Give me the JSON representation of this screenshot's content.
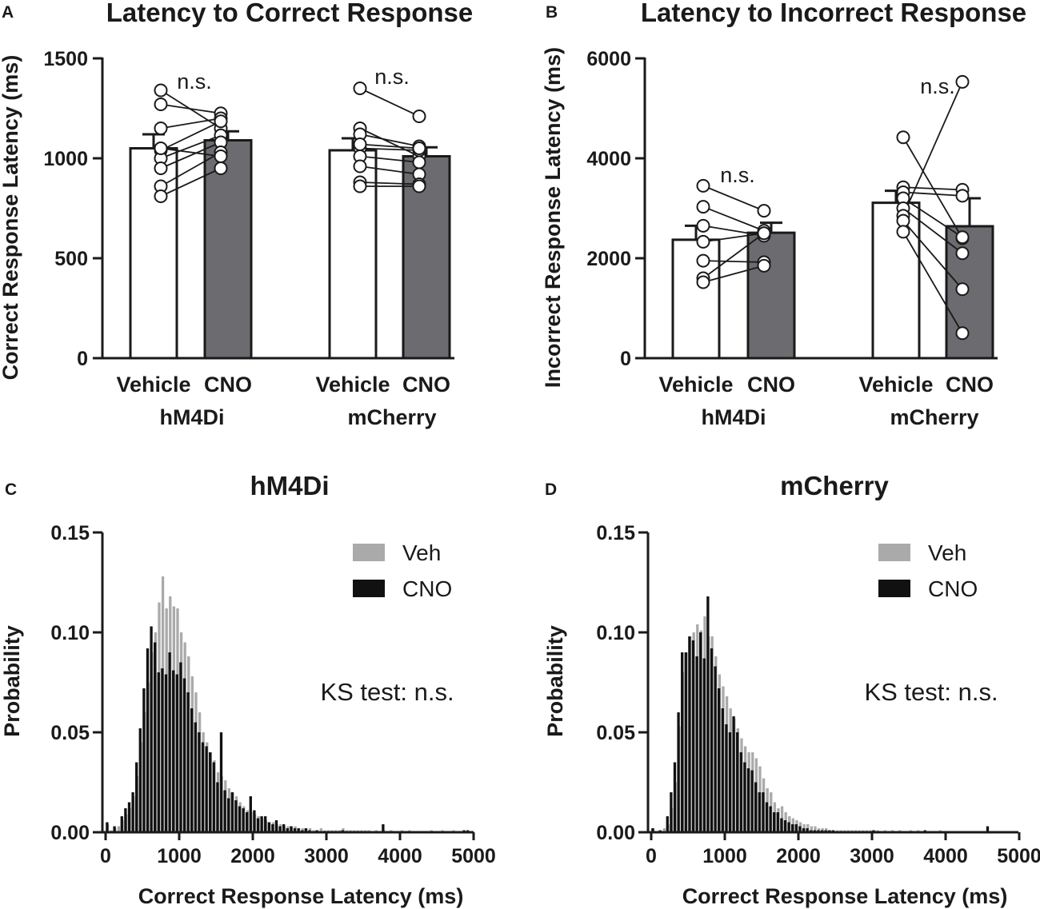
{
  "colors": {
    "ink": "#1a1a1a",
    "vehicle_bar": "#ffffff",
    "cno_bar": "#6b6b70",
    "veh_hist": "#aaaaaa",
    "cno_hist": "#111111",
    "dot": "#ffffff"
  },
  "chart_data": [
    {
      "panel": "A",
      "type": "bar",
      "title": "Latency to Correct Response",
      "xlabel": "",
      "ylabel": "Correct Response Latency (ms)",
      "ylim": [
        0,
        1500
      ],
      "yticks": [
        0,
        500,
        1000,
        1500
      ],
      "condition_labels": [
        "Vehicle",
        "CNO"
      ],
      "groups": [
        {
          "name": "hM4Di",
          "means": [
            1050,
            1090
          ],
          "sems": [
            70,
            45
          ],
          "annotation": "n.s.",
          "pairs": [
            [
              1340,
              1150
            ],
            [
              1270,
              1225
            ],
            [
              1150,
              1200
            ],
            [
              1040,
              1185
            ],
            [
              1000,
              1115
            ],
            [
              950,
              1080
            ],
            [
              860,
              1030
            ],
            [
              810,
              950
            ],
            [
              1050,
              1010
            ]
          ]
        },
        {
          "name": "mCherry",
          "means": [
            1040,
            1010
          ],
          "sems": [
            60,
            45
          ],
          "annotation": "n.s.",
          "pairs": [
            [
              1350,
              1210
            ],
            [
              1150,
              1010
            ],
            [
              1120,
              1060
            ],
            [
              1050,
              1040
            ],
            [
              1010,
              980
            ],
            [
              960,
              920
            ],
            [
              880,
              870
            ],
            [
              860,
              860
            ],
            [
              1070,
              1050
            ]
          ]
        }
      ]
    },
    {
      "panel": "B",
      "type": "bar",
      "title": "Latency to Incorrect Response",
      "xlabel": "",
      "ylabel": "Incorrect Response Latency (ms)",
      "ylim": [
        0,
        6000
      ],
      "yticks": [
        0,
        2000,
        4000,
        6000
      ],
      "condition_labels": [
        "Vehicle",
        "CNO"
      ],
      "groups": [
        {
          "name": "hM4Di",
          "means": [
            2370,
            2510
          ],
          "sems": [
            280,
            200
          ],
          "annotation": "n.s.",
          "pairs": [
            [
              3450,
              2950
            ],
            [
              3030,
              2550
            ],
            [
              2650,
              2450
            ],
            [
              2330,
              2500
            ],
            [
              1950,
              1920
            ],
            [
              1600,
              2500
            ],
            [
              1520,
              1850
            ]
          ]
        },
        {
          "name": "mCherry",
          "means": [
            3110,
            2640
          ],
          "sems": [
            240,
            560
          ],
          "annotation": "n.s.",
          "pairs": [
            [
              4420,
              2400
            ],
            [
              3420,
              3370
            ],
            [
              3320,
              3250
            ],
            [
              3200,
              2420
            ],
            [
              3000,
              2100
            ],
            [
              2850,
              5530
            ],
            [
              2750,
              1380
            ],
            [
              2530,
              500
            ]
          ]
        }
      ]
    },
    {
      "panel": "C",
      "type": "bar",
      "title": "hM4Di",
      "xlabel": "Correct Response Latency (ms)",
      "ylabel": "Probability",
      "xlim": [
        0,
        5000
      ],
      "ylim": [
        0,
        0.15
      ],
      "xticks": [
        0,
        1000,
        2000,
        3000,
        4000,
        5000
      ],
      "yticks": [
        "0.00",
        "0.05",
        "0.10",
        "0.15"
      ],
      "annotation": "KS test: n.s.",
      "legend": [
        "Veh",
        "CNO"
      ],
      "legend_position": "top-right",
      "bin_width": 50,
      "bin_starts": [
        0,
        50,
        100,
        150,
        200,
        250,
        300,
        350,
        400,
        450,
        500,
        550,
        600,
        650,
        700,
        750,
        800,
        850,
        900,
        950,
        1000,
        1050,
        1100,
        1150,
        1200,
        1250,
        1300,
        1350,
        1400,
        1450,
        1500,
        1550,
        1600,
        1650,
        1700,
        1750,
        1800,
        1850,
        1900,
        1950,
        2000,
        2050,
        2100,
        2150,
        2200,
        2250,
        2300,
        2350,
        2400,
        2450,
        2500,
        2550,
        2600,
        2650,
        2700,
        2750,
        2800,
        2850,
        2900,
        2950,
        3000,
        3050,
        3100,
        3150,
        3200,
        3250,
        3300,
        3350,
        3400,
        3450,
        3500,
        3550,
        3600,
        3650,
        3700,
        3750,
        3800,
        3850,
        3900,
        3950,
        4000,
        4050,
        4100,
        4150,
        4200,
        4250,
        4300,
        4350,
        4400,
        4450,
        4500,
        4550,
        4600,
        4650,
        4700,
        4750,
        4800,
        4850,
        4900,
        4950
      ],
      "series": [
        {
          "name": "Veh",
          "values": [
            0.004,
            0.001,
            0.002,
            0.003,
            0.006,
            0.009,
            0.012,
            0.018,
            0.028,
            0.045,
            0.06,
            0.075,
            0.09,
            0.1,
            0.115,
            0.128,
            0.112,
            0.118,
            0.113,
            0.112,
            0.1,
            0.095,
            0.088,
            0.078,
            0.07,
            0.06,
            0.05,
            0.045,
            0.04,
            0.036,
            0.03,
            0.028,
            0.026,
            0.022,
            0.02,
            0.018,
            0.015,
            0.013,
            0.011,
            0.01,
            0.009,
            0.008,
            0.007,
            0.006,
            0.005,
            0.005,
            0.004,
            0.004,
            0.003,
            0.003,
            0.003,
            0.003,
            0.002,
            0.002,
            0.002,
            0.002,
            0.001,
            0.001,
            0.002,
            0.001,
            0.001,
            0.001,
            0.001,
            0.001,
            0.002,
            0.001,
            0.001,
            0.001,
            0.001,
            0.001,
            0.001,
            0.001,
            0.0,
            0.001,
            0.0,
            0.001,
            0.0,
            0.001,
            0.0,
            0.0,
            0.001,
            0.0,
            0.001,
            0.0,
            0.0,
            0.0,
            0.0,
            0.0,
            0.001,
            0.0,
            0.0,
            0.001,
            0.0,
            0.0,
            0.001,
            0.0,
            0.0,
            0.0,
            0.0,
            0.0
          ]
        },
        {
          "name": "CNO",
          "values": [
            0.005,
            0.0,
            0.003,
            0.0,
            0.008,
            0.012,
            0.015,
            0.02,
            0.035,
            0.052,
            0.072,
            0.092,
            0.103,
            0.095,
            0.08,
            0.082,
            0.079,
            0.09,
            0.081,
            0.079,
            0.085,
            0.077,
            0.07,
            0.062,
            0.055,
            0.05,
            0.045,
            0.043,
            0.04,
            0.035,
            0.025,
            0.05,
            0.021,
            0.017,
            0.02,
            0.016,
            0.013,
            0.012,
            0.01,
            0.018,
            0.011,
            0.007,
            0.008,
            0.008,
            0.005,
            0.004,
            0.006,
            0.003,
            0.004,
            0.002,
            0.003,
            0.002,
            0.002,
            0.001,
            0.002,
            0.001,
            0.0,
            0.001,
            0.0,
            0.0,
            0.0,
            0.0,
            0.0,
            0.0,
            0.001,
            0.0,
            0.0,
            0.0,
            0.0,
            0.0,
            0.0,
            0.0,
            0.0,
            0.0,
            0.0,
            0.004,
            0.0,
            0.0,
            0.0,
            0.0,
            0.0,
            0.0,
            0.0,
            0.0,
            0.0,
            0.0,
            0.0,
            0.0,
            0.0,
            0.0,
            0.0,
            0.0,
            0.0,
            0.0,
            0.0,
            0.0,
            0.0,
            0.001,
            0.001,
            0.0
          ]
        }
      ]
    },
    {
      "panel": "D",
      "type": "bar",
      "title": "mCherry",
      "xlabel": "Correct Response Latency (ms)",
      "ylabel": "Probability",
      "xlim": [
        0,
        5000
      ],
      "ylim": [
        0,
        0.15
      ],
      "xticks": [
        0,
        1000,
        2000,
        3000,
        4000,
        5000
      ],
      "yticks": [
        "0.00",
        "0.05",
        "0.10",
        "0.15"
      ],
      "annotation": "KS test: n.s.",
      "legend": [
        "Veh",
        "CNO"
      ],
      "legend_position": "top-right",
      "bin_width": 50,
      "bin_starts": [
        0,
        50,
        100,
        150,
        200,
        250,
        300,
        350,
        400,
        450,
        500,
        550,
        600,
        650,
        700,
        750,
        800,
        850,
        900,
        950,
        1000,
        1050,
        1100,
        1150,
        1200,
        1250,
        1300,
        1350,
        1400,
        1450,
        1500,
        1550,
        1600,
        1650,
        1700,
        1750,
        1800,
        1850,
        1900,
        1950,
        2000,
        2050,
        2100,
        2150,
        2200,
        2250,
        2300,
        2350,
        2400,
        2450,
        2500,
        2550,
        2600,
        2650,
        2700,
        2750,
        2800,
        2850,
        2900,
        2950,
        3000,
        3050,
        3100,
        3150,
        3200,
        3250,
        3300,
        3350,
        3400,
        3450,
        3500,
        3550,
        3600,
        3650,
        3700,
        3750,
        3800,
        3850,
        3900,
        3950,
        4000,
        4050,
        4100,
        4150,
        4200,
        4250,
        4300,
        4350,
        4400,
        4450,
        4500,
        4550,
        4600,
        4650,
        4700,
        4750,
        4800,
        4850,
        4900,
        4950
      ],
      "series": [
        {
          "name": "Veh",
          "values": [
            0.002,
            0.0,
            0.001,
            0.002,
            0.004,
            0.012,
            0.025,
            0.053,
            0.08,
            0.09,
            0.098,
            0.1,
            0.104,
            0.101,
            0.108,
            0.098,
            0.098,
            0.088,
            0.079,
            0.073,
            0.068,
            0.062,
            0.057,
            0.052,
            0.047,
            0.043,
            0.04,
            0.04,
            0.037,
            0.033,
            0.027,
            0.022,
            0.02,
            0.015,
            0.012,
            0.013,
            0.01,
            0.008,
            0.007,
            0.006,
            0.005,
            0.004,
            0.004,
            0.003,
            0.003,
            0.002,
            0.002,
            0.002,
            0.001,
            0.001,
            0.001,
            0.001,
            0.001,
            0.001,
            0.001,
            0.001,
            0.001,
            0.001,
            0.001,
            0.001,
            0.001,
            0.001,
            0.0,
            0.001,
            0.0,
            0.001,
            0.0,
            0.001,
            0.0,
            0.0,
            0.001,
            0.0,
            0.001,
            0.0,
            0.0,
            0.0,
            0.0,
            0.0,
            0.001,
            0.0,
            0.0,
            0.0,
            0.0,
            0.0,
            0.0,
            0.0,
            0.0,
            0.0,
            0.0,
            0.0,
            0.0,
            0.0,
            0.0,
            0.0,
            0.0,
            0.0,
            0.0,
            0.0,
            0.0,
            0.0
          ]
        },
        {
          "name": "CNO",
          "values": [
            0.002,
            0.0,
            0.001,
            0.0,
            0.008,
            0.02,
            0.035,
            0.06,
            0.09,
            0.09,
            0.098,
            0.096,
            0.088,
            0.1,
            0.087,
            0.118,
            0.092,
            0.083,
            0.072,
            0.062,
            0.054,
            0.05,
            0.058,
            0.05,
            0.04,
            0.035,
            0.032,
            0.031,
            0.025,
            0.02,
            0.02,
            0.015,
            0.013,
            0.01,
            0.01,
            0.007,
            0.006,
            0.005,
            0.004,
            0.004,
            0.003,
            0.002,
            0.002,
            0.001,
            0.001,
            0.001,
            0.001,
            0.001,
            0.001,
            0.001,
            0.0,
            0.0,
            0.0,
            0.0,
            0.0,
            0.0,
            0.0,
            0.0,
            0.0,
            0.0,
            0.001,
            0.0,
            0.0,
            0.0,
            0.0,
            0.0,
            0.0,
            0.0,
            0.0,
            0.0,
            0.0,
            0.0,
            0.0,
            0.0,
            0.001,
            0.0,
            0.0,
            0.0,
            0.0,
            0.0,
            0.0,
            0.0,
            0.0,
            0.0,
            0.0,
            0.0,
            0.0,
            0.0,
            0.0,
            0.0,
            0.0,
            0.003,
            0.0,
            0.0,
            0.0,
            0.0,
            0.0,
            0.0,
            0.0,
            0.0
          ]
        }
      ]
    }
  ]
}
